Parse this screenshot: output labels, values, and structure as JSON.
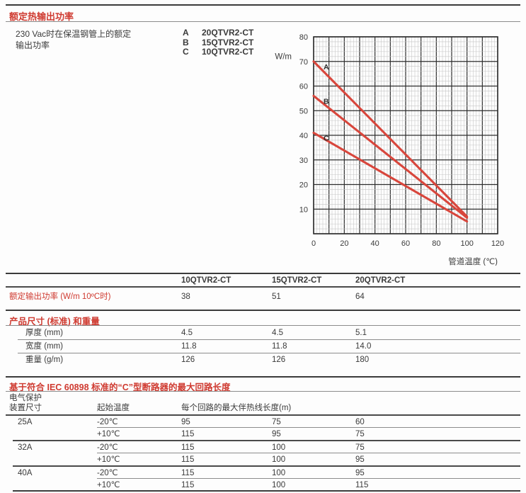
{
  "page": {
    "title": "额定热输出功率",
    "intro_line1": "230 Vac时在保温钢管上的额定",
    "intro_line2": "输出功率",
    "legend": [
      {
        "key": "A",
        "label": "20QTVR2-CT"
      },
      {
        "key": "B",
        "label": "15QTVR2-CT"
      },
      {
        "key": "C",
        "label": "10QTVR2-CT"
      }
    ]
  },
  "chart_data": {
    "type": "line",
    "title": "",
    "ylabel": "W/m",
    "xlabel": "管道温度 (℃)",
    "xlim": [
      0,
      120
    ],
    "ylim": [
      0,
      80
    ],
    "x_ticks": [
      0,
      20,
      40,
      60,
      80,
      100,
      120
    ],
    "y_ticks": [
      10,
      20,
      30,
      40,
      50,
      60,
      70,
      80
    ],
    "grid": "major every 10 units, minor every 2 units",
    "legend_position": "labels on lines",
    "line_color": "#d8463c",
    "series": [
      {
        "name": "A",
        "product": "20QTVR2-CT",
        "x": [
          0,
          100
        ],
        "y": [
          70,
          7
        ]
      },
      {
        "name": "B",
        "product": "15QTVR2-CT",
        "x": [
          0,
          100
        ],
        "y": [
          56,
          6.5
        ]
      },
      {
        "name": "C",
        "product": "10QTVR2-CT",
        "x": [
          0,
          100
        ],
        "y": [
          41,
          5
        ]
      }
    ]
  },
  "ratings_table": {
    "columns": [
      "10QTVR2-CT",
      "15QTVR2-CT",
      "20QTVR2-CT"
    ],
    "row_label": "额定输出功率 (W/m 10ºC时)",
    "row_values": [
      "38",
      "51",
      "64"
    ]
  },
  "dimensions_section": {
    "title": "产品尺寸 (标准) 和重量",
    "rows": [
      {
        "label": "厚度 (mm)",
        "values": [
          "4.5",
          "4.5",
          "5.1"
        ]
      },
      {
        "label": "宽度 (mm)",
        "values": [
          "11.8",
          "11.8",
          "14.0"
        ]
      },
      {
        "label": "重量 (g/m)",
        "values": [
          "126",
          "126",
          "180"
        ]
      }
    ]
  },
  "circuit_section": {
    "title": "基于符合 IEC 60898 标准的“C”型断路器的最大回路长度",
    "col1_header_line1": "电气保护",
    "col1_header_line2": "装置尺寸",
    "col2_header": "起始温度",
    "span_header": "每个回路的最大伴热线长度(m)",
    "groups": [
      {
        "size": "25A",
        "rows": [
          {
            "temp": "-20℃",
            "values": [
              "95",
              "75",
              "60"
            ]
          },
          {
            "temp": "+10℃",
            "values": [
              "115",
              "95",
              "75"
            ]
          }
        ]
      },
      {
        "size": "32A",
        "rows": [
          {
            "temp": "-20℃",
            "values": [
              "115",
              "100",
              "75"
            ]
          },
          {
            "temp": "+10℃",
            "values": [
              "115",
              "100",
              "95"
            ]
          }
        ]
      },
      {
        "size": "40A",
        "rows": [
          {
            "temp": "-20℃",
            "values": [
              "115",
              "100",
              "95"
            ]
          },
          {
            "temp": "+10℃",
            "values": [
              "115",
              "100",
              "115"
            ]
          }
        ]
      }
    ]
  },
  "colors": {
    "accent_red": "#cf3a30",
    "chart_line_red": "#d8463c",
    "text": "#3a3a3a"
  }
}
